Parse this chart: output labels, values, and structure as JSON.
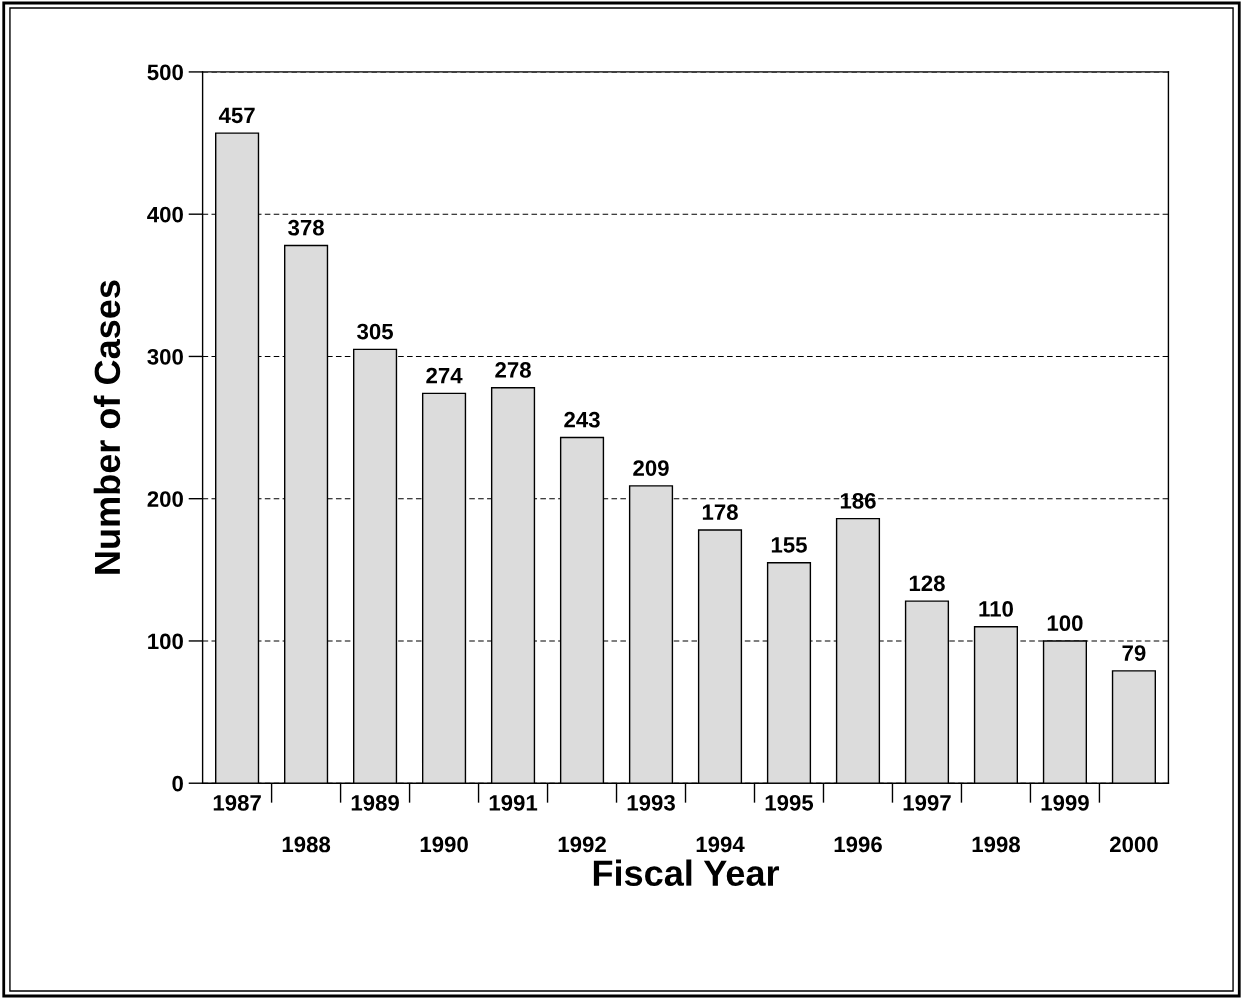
{
  "chart_data": {
    "type": "bar",
    "xlabel": "Fiscal Year",
    "ylabel": "Number of Cases",
    "categories": [
      "1987",
      "1988",
      "1989",
      "1990",
      "1991",
      "1992",
      "1993",
      "1994",
      "1995",
      "1996",
      "1997",
      "1998",
      "1999",
      "2000"
    ],
    "values": [
      457,
      378,
      305,
      274,
      278,
      243,
      209,
      178,
      155,
      186,
      128,
      110,
      100,
      79
    ],
    "color": "#dcdcdc",
    "ylim": [
      0,
      500
    ],
    "yticks": [
      0,
      100,
      200,
      300,
      400,
      500
    ],
    "grid": "y",
    "data_labels": true
  }
}
